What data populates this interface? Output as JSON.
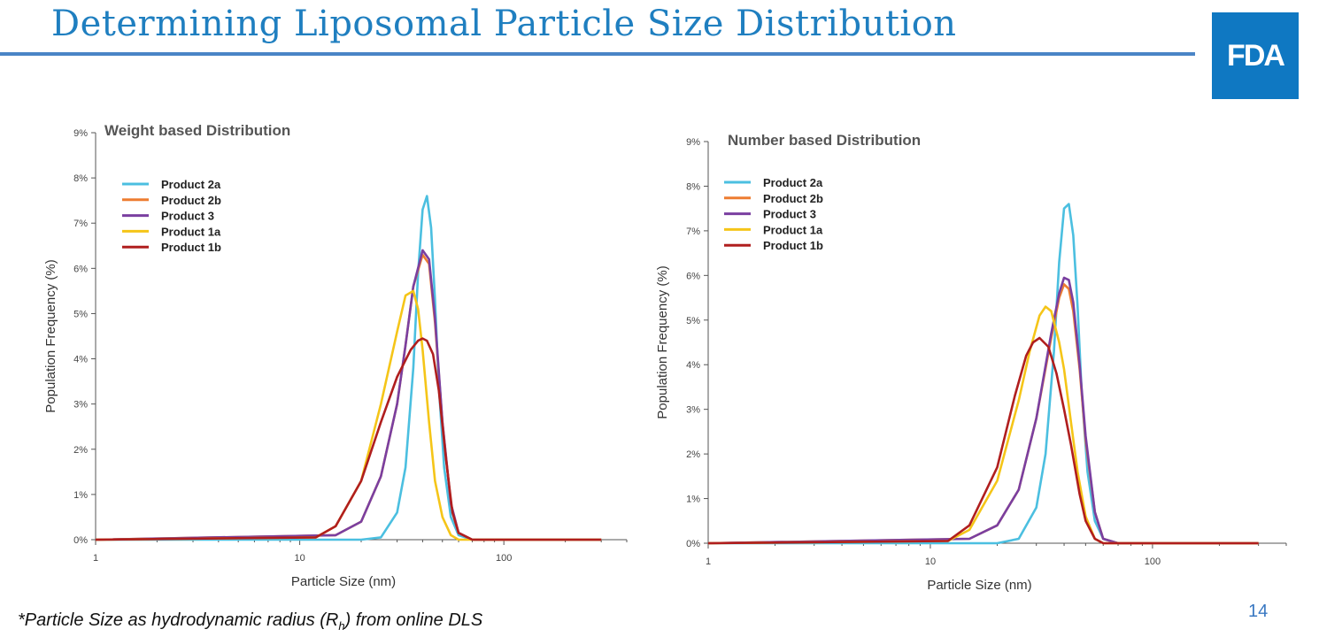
{
  "slide": {
    "title": "Determining Liposomal Particle Size Distribution",
    "logo_text": "FDA",
    "footnote": {
      "pre": "*Particle Size as hydrodynamic radius (R",
      "sub": "h",
      "post": ") from online DLS"
    },
    "page_number": "14"
  },
  "colors": {
    "title": "#1f7fc0",
    "logo": "#0f78c2",
    "rule": "#4a85c6"
  },
  "chart_data": [
    {
      "type": "line",
      "title": "Weight based Distribution",
      "xlabel": "Particle Size (nm)",
      "ylabel": "Population Frequency (%)",
      "xscale": "log",
      "xlim": [
        1,
        400
      ],
      "ylim": [
        0,
        9
      ],
      "xticks": [
        "1",
        "10",
        "100"
      ],
      "yticks": [
        "0%",
        "1%",
        "2%",
        "3%",
        "4%",
        "5%",
        "6%",
        "7%",
        "8%",
        "9%"
      ],
      "legend_position": "top-left",
      "series": [
        {
          "name": "Product 2a",
          "color": "#4bbfe0",
          "x": [
            1,
            20,
            25,
            30,
            33,
            36,
            38,
            40,
            42,
            44,
            46,
            48,
            51,
            55,
            60,
            70,
            100,
            300
          ],
          "y": [
            0,
            0,
            0.05,
            0.6,
            1.6,
            3.8,
            5.9,
            7.3,
            7.6,
            6.9,
            5.3,
            3.4,
            1.6,
            0.5,
            0.1,
            0,
            0,
            0
          ]
        },
        {
          "name": "Product 2b",
          "color": "#ed7d31",
          "x": [
            1,
            15,
            20,
            25,
            30,
            33,
            36,
            40,
            43,
            46,
            50,
            55,
            60,
            70,
            100,
            300
          ],
          "y": [
            0,
            0.1,
            0.4,
            1.4,
            3.0,
            4.3,
            5.6,
            6.3,
            6.1,
            4.8,
            2.6,
            0.8,
            0.15,
            0,
            0,
            0
          ]
        },
        {
          "name": "Product 3",
          "color": "#7a3fa0",
          "x": [
            1,
            15,
            20,
            25,
            30,
            33,
            36,
            40,
            43,
            46,
            50,
            55,
            60,
            70,
            100,
            300
          ],
          "y": [
            0,
            0.1,
            0.4,
            1.4,
            3.0,
            4.3,
            5.6,
            6.4,
            6.2,
            4.9,
            2.6,
            0.8,
            0.15,
            0,
            0,
            0
          ]
        },
        {
          "name": "Product 1a",
          "color": "#f5c518",
          "x": [
            1,
            12,
            15,
            20,
            25,
            30,
            33,
            36,
            38,
            40,
            43,
            46,
            50,
            55,
            60,
            70,
            100,
            300
          ],
          "y": [
            0,
            0.05,
            0.3,
            1.3,
            3.0,
            4.6,
            5.4,
            5.5,
            5.1,
            4.2,
            2.6,
            1.3,
            0.5,
            0.1,
            0,
            0,
            0,
            0
          ]
        },
        {
          "name": "Product 1b",
          "color": "#b01e1e",
          "x": [
            1,
            12,
            15,
            20,
            25,
            30,
            35,
            38,
            40,
            42,
            45,
            48,
            52,
            56,
            60,
            70,
            100,
            300
          ],
          "y": [
            0,
            0.05,
            0.3,
            1.3,
            2.6,
            3.6,
            4.2,
            4.4,
            4.45,
            4.4,
            4.1,
            3.3,
            1.8,
            0.6,
            0.15,
            0,
            0,
            0
          ]
        }
      ]
    },
    {
      "type": "line",
      "title": "Number based Distribution",
      "xlabel": "Particle Size (nm)",
      "ylabel": "Population Frequency (%)",
      "xscale": "log",
      "xlim": [
        1,
        400
      ],
      "ylim": [
        0,
        9
      ],
      "xticks": [
        "1",
        "10",
        "100"
      ],
      "yticks": [
        "0%",
        "1%",
        "2%",
        "3%",
        "4%",
        "5%",
        "6%",
        "7%",
        "8%",
        "9%"
      ],
      "legend_position": "top-left",
      "series": [
        {
          "name": "Product 2a",
          "color": "#4bbfe0",
          "x": [
            1,
            20,
            25,
            30,
            33,
            36,
            38,
            40,
            42,
            44,
            46,
            48,
            51,
            55,
            60,
            70,
            100,
            300
          ],
          "y": [
            0,
            0,
            0.1,
            0.8,
            2.0,
            4.3,
            6.3,
            7.5,
            7.6,
            6.9,
            5.3,
            3.4,
            1.6,
            0.5,
            0.1,
            0,
            0,
            0
          ]
        },
        {
          "name": "Product 2b",
          "color": "#ed7d31",
          "x": [
            1,
            15,
            20,
            25,
            30,
            35,
            38,
            40,
            42,
            44,
            47,
            50,
            55,
            60,
            70,
            100,
            300
          ],
          "y": [
            0,
            0.1,
            0.4,
            1.2,
            2.8,
            4.6,
            5.5,
            5.8,
            5.7,
            5.2,
            3.9,
            2.3,
            0.7,
            0.1,
            0,
            0,
            0
          ]
        },
        {
          "name": "Product 3",
          "color": "#7a3fa0",
          "x": [
            1,
            15,
            20,
            25,
            30,
            35,
            38,
            40,
            42,
            44,
            47,
            50,
            55,
            60,
            70,
            100,
            300
          ],
          "y": [
            0,
            0.1,
            0.4,
            1.2,
            2.8,
            4.7,
            5.6,
            5.95,
            5.9,
            5.4,
            4.0,
            2.4,
            0.7,
            0.1,
            0,
            0,
            0
          ]
        },
        {
          "name": "Product 1a",
          "color": "#f5c518",
          "x": [
            1,
            12,
            15,
            20,
            25,
            28,
            31,
            33,
            35,
            38,
            40,
            43,
            46,
            50,
            55,
            60,
            70,
            100,
            300
          ],
          "y": [
            0,
            0.05,
            0.3,
            1.4,
            3.2,
            4.3,
            5.1,
            5.3,
            5.2,
            4.5,
            3.9,
            2.7,
            1.6,
            0.6,
            0.1,
            0,
            0,
            0,
            0
          ]
        },
        {
          "name": "Product 1b",
          "color": "#b01e1e",
          "x": [
            1,
            12,
            15,
            20,
            24,
            27,
            29,
            31,
            34,
            37,
            40,
            43,
            47,
            50,
            55,
            60,
            70,
            100,
            300
          ],
          "y": [
            0,
            0.05,
            0.4,
            1.7,
            3.3,
            4.2,
            4.5,
            4.6,
            4.4,
            3.8,
            3.0,
            2.2,
            1.1,
            0.5,
            0.1,
            0,
            0,
            0,
            0
          ]
        }
      ]
    }
  ]
}
